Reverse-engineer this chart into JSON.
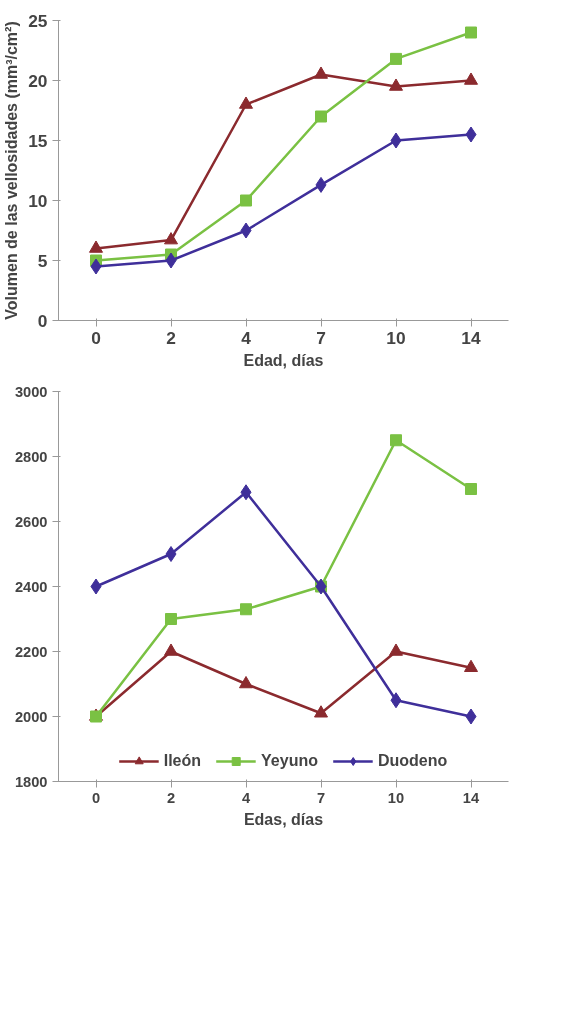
{
  "chart_data": [
    {
      "type": "line",
      "xlabel": "Edad, días",
      "ylabel": "Volumen de las vellosidades (mm³/cm²)",
      "categories": [
        "0",
        "2",
        "4",
        "7",
        "10",
        "14"
      ],
      "ylim": [
        0,
        25
      ],
      "yticks": [
        0,
        5,
        10,
        15,
        20,
        25
      ],
      "grid": false,
      "series": [
        {
          "color": "#8b2a2e",
          "marker": "triangle",
          "values": [
            6,
            6.7,
            18,
            20.5,
            19.5,
            20
          ]
        },
        {
          "color": "#7ac143",
          "marker": "square",
          "values": [
            5,
            5.5,
            10,
            17,
            21.8,
            24
          ]
        },
        {
          "color": "#3f2f9a",
          "marker": "diamond",
          "values": [
            4.5,
            5,
            7.5,
            11.3,
            15,
            15.5
          ]
        }
      ]
    },
    {
      "type": "line",
      "xlabel": "Edas, días",
      "categories": [
        "0",
        "2",
        "4",
        "7",
        "10",
        "14"
      ],
      "ylim": [
        1800,
        3000
      ],
      "yticks": [
        1800,
        2000,
        2200,
        2400,
        2600,
        2800,
        3000
      ],
      "grid": false,
      "legend": "bottom",
      "series": [
        {
          "name": "Ileón",
          "color": "#8b2a2e",
          "marker": "triangle",
          "values": [
            2000,
            2200,
            2100,
            2010,
            2200,
            2150
          ]
        },
        {
          "name": "Yeyuno",
          "color": "#7ac143",
          "marker": "square",
          "values": [
            2000,
            2300,
            2330,
            2400,
            2850,
            2700
          ]
        },
        {
          "name": "Duodeno",
          "color": "#3f2f9a",
          "marker": "diamond",
          "values": [
            2400,
            2500,
            2690,
            2400,
            2050,
            2000
          ]
        }
      ]
    }
  ]
}
